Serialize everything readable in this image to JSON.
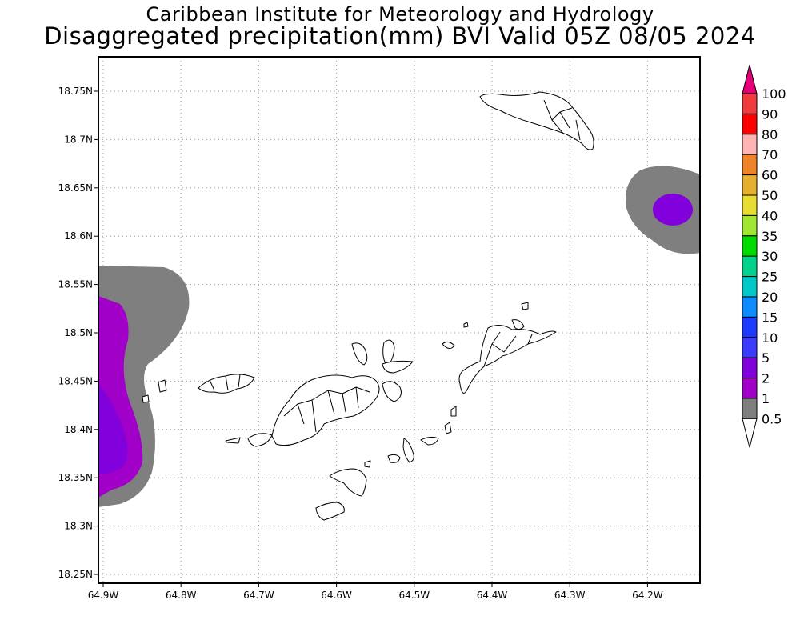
{
  "title_line1": "Caribbean Institute for Meteorology and Hydrology",
  "title_line2": "Disaggregated precipitation(mm) BVI Valid 05Z 08/05 2024",
  "lat_labels": [
    "18.75N",
    "18.7N",
    "18.65N",
    "18.6N",
    "18.55N",
    "18.5N",
    "18.45N",
    "18.4N",
    "18.35N",
    "18.3N",
    "18.25N"
  ],
  "lat_values": [
    18.75,
    18.7,
    18.65,
    18.6,
    18.55,
    18.5,
    18.45,
    18.4,
    18.35,
    18.3,
    18.25
  ],
  "lon_labels": [
    "64.9W",
    "64.8W",
    "64.7W",
    "64.6W",
    "64.5W",
    "64.4W",
    "64.3W",
    "64.2W"
  ],
  "lon_values": [
    -64.9,
    -64.8,
    -64.7,
    -64.6,
    -64.5,
    -64.4,
    -64.3,
    -64.2
  ],
  "legend": {
    "labels": [
      "0.5",
      "1",
      "2",
      "5",
      "10",
      "15",
      "20",
      "25",
      "30",
      "35",
      "40",
      "50",
      "60",
      "70",
      "80",
      "90",
      "100"
    ],
    "colors": [
      "#7f7f7f",
      "#a000c8",
      "#8200dc",
      "#3c3cff",
      "#1e3cff",
      "#0c8cff",
      "#00c8c8",
      "#00d28c",
      "#00dc00",
      "#a0e632",
      "#e6dc32",
      "#e6af2d",
      "#f08228",
      "#ffb4b4",
      "#ff0000",
      "#f03c3c",
      "#e6007a"
    ]
  },
  "colors": {
    "dry": "#7f7f7f",
    "light": "#a000c8",
    "moderate": "#8200dc"
  }
}
